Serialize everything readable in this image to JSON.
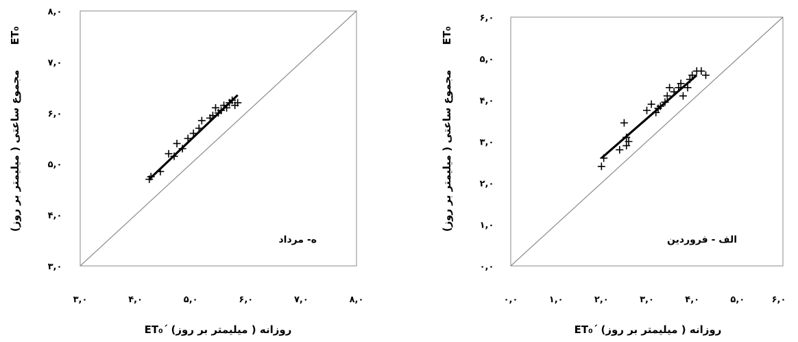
{
  "chart_data": [
    {
      "type": "scatter",
      "panel_label": "ه- مرداد",
      "xlabel": "ET₀΄ روزانه ( میلیمتر بر روز)",
      "ylabel": "مجموع ساعتی ( میلیمتر بر روز)",
      "ylabel_top": "ET₀",
      "xlim": [
        3.0,
        8.0
      ],
      "ylim": [
        3.0,
        8.0
      ],
      "x_ticks": [
        "۳,۰",
        "۴,۰",
        "۵,۰",
        "۶,۰",
        "۷,۰",
        "۸,۰"
      ],
      "y_ticks": [
        "۳,۰",
        "۴,۰",
        "۵,۰",
        "۶,۰",
        "۷,۰",
        "۸,۰"
      ],
      "reference_line": [
        [
          3.0,
          3.0
        ],
        [
          8.0,
          8.0
        ]
      ],
      "fit_line": [
        [
          4.25,
          4.7
        ],
        [
          5.85,
          6.35
        ]
      ],
      "points": [
        [
          4.25,
          4.7
        ],
        [
          4.28,
          4.75
        ],
        [
          4.45,
          4.85
        ],
        [
          4.6,
          5.2
        ],
        [
          4.7,
          5.15
        ],
        [
          4.75,
          5.4
        ],
        [
          4.85,
          5.3
        ],
        [
          4.95,
          5.5
        ],
        [
          5.05,
          5.6
        ],
        [
          5.15,
          5.7
        ],
        [
          5.2,
          5.85
        ],
        [
          5.35,
          5.9
        ],
        [
          5.4,
          5.95
        ],
        [
          5.45,
          6.1
        ],
        [
          5.5,
          6.0
        ],
        [
          5.55,
          6.05
        ],
        [
          5.6,
          6.15
        ],
        [
          5.65,
          6.1
        ],
        [
          5.7,
          6.2
        ],
        [
          5.75,
          6.25
        ],
        [
          5.8,
          6.15
        ],
        [
          5.85,
          6.2
        ]
      ]
    },
    {
      "type": "scatter",
      "panel_label": "الف - فروردین",
      "xlabel": "ET₀΄ روزانه ( میلیمتر بر روز)",
      "ylabel": "مجموع ساعتی ( میلیمتر بر روز)",
      "ylabel_top": "ET₀",
      "xlim": [
        0.0,
        6.0
      ],
      "ylim": [
        0.0,
        6.0
      ],
      "x_ticks": [
        "۰,۰",
        "۱,۰",
        "۲,۰",
        "۳,۰",
        "۴,۰",
        "۵,۰",
        "۶,۰"
      ],
      "y_ticks": [
        "۰,۰",
        "۱,۰",
        "۲,۰",
        "۳,۰",
        "۴,۰",
        "۵,۰",
        "۶,۰"
      ],
      "reference_line": [
        [
          0.0,
          0.0
        ],
        [
          6.0,
          6.0
        ]
      ],
      "fit_line": [
        [
          2.0,
          2.6
        ],
        [
          4.1,
          4.6
        ]
      ],
      "points": [
        [
          2.0,
          2.4
        ],
        [
          2.05,
          2.6
        ],
        [
          2.4,
          2.8
        ],
        [
          2.5,
          3.45
        ],
        [
          2.55,
          2.9
        ],
        [
          2.6,
          3.0
        ],
        [
          2.55,
          3.1
        ],
        [
          3.0,
          3.75
        ],
        [
          3.1,
          3.9
        ],
        [
          3.2,
          3.7
        ],
        [
          3.25,
          3.8
        ],
        [
          3.3,
          3.85
        ],
        [
          3.4,
          3.95
        ],
        [
          3.45,
          4.1
        ],
        [
          3.5,
          4.3
        ],
        [
          3.6,
          4.2
        ],
        [
          3.7,
          4.3
        ],
        [
          3.75,
          4.4
        ],
        [
          3.8,
          4.1
        ],
        [
          3.9,
          4.3
        ],
        [
          3.95,
          4.5
        ],
        [
          4.0,
          4.6
        ],
        [
          4.1,
          4.7
        ],
        [
          4.2,
          4.7
        ],
        [
          4.3,
          4.6
        ]
      ]
    }
  ]
}
